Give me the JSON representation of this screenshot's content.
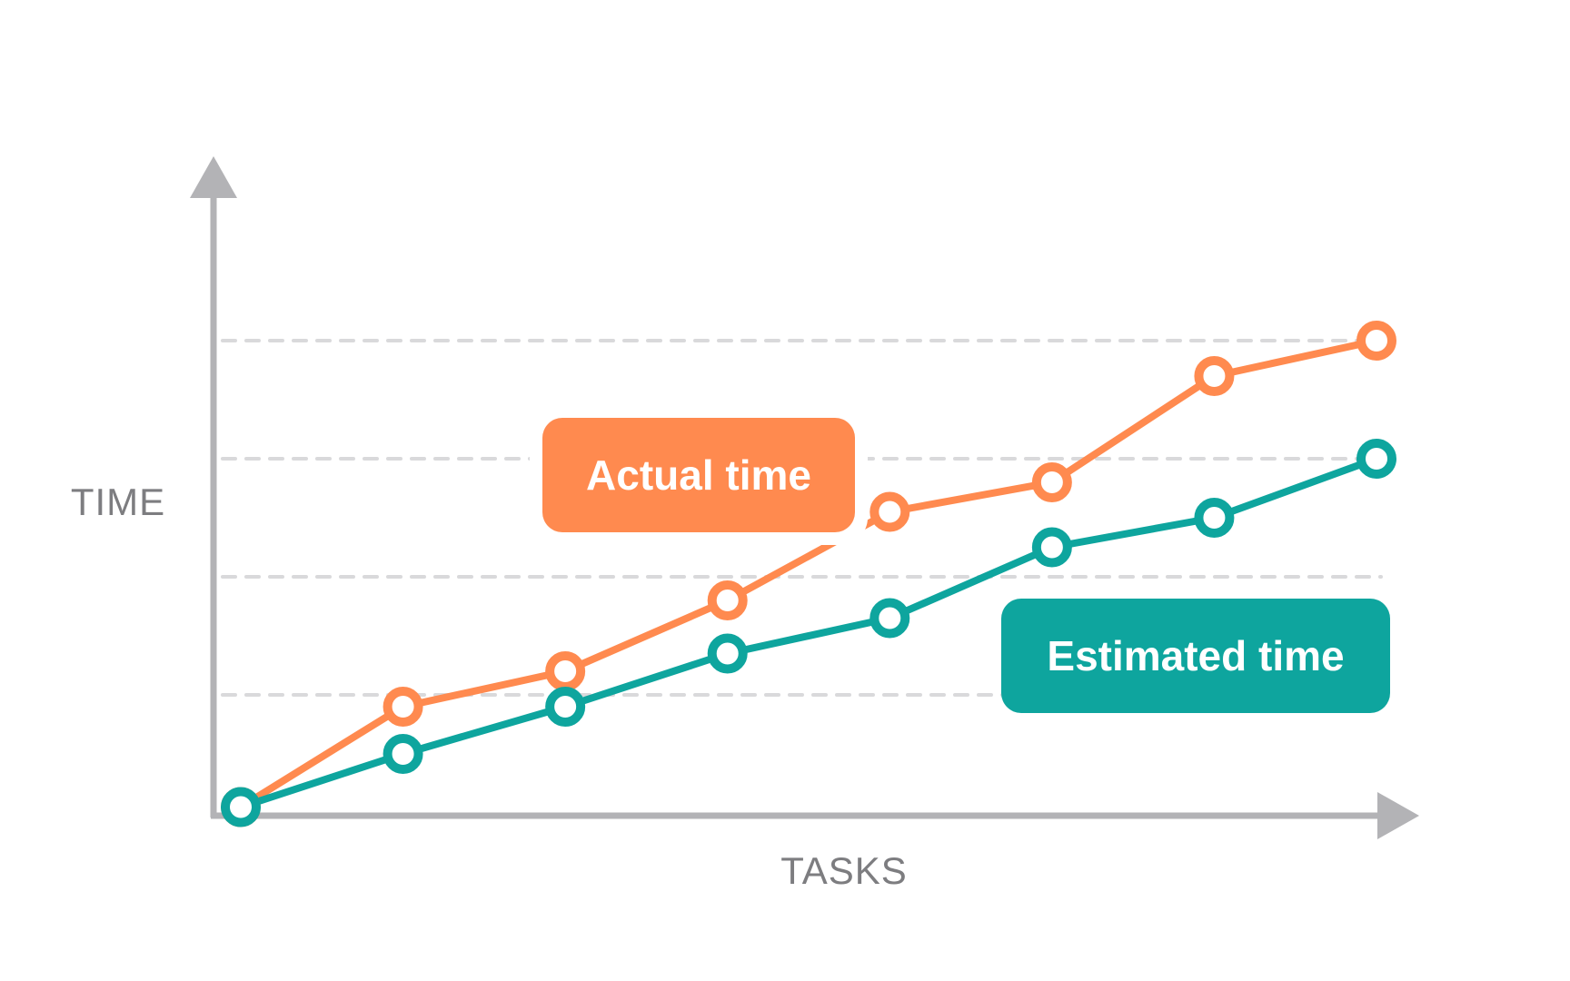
{
  "chart_data": {
    "type": "line",
    "xlabel": "TASKS",
    "ylabel": "TIME",
    "x": [
      1,
      2,
      3,
      4,
      5,
      6,
      7,
      8
    ],
    "ylim": [
      0,
      10
    ],
    "grid": true,
    "series": [
      {
        "name": "Actual time",
        "color": "#ff8a4f",
        "values": [
          0.1,
          1.8,
          2.4,
          3.6,
          5.1,
          5.6,
          7.4,
          8.0
        ]
      },
      {
        "name": "Estimated time",
        "color": "#0ea59e",
        "values": [
          0.1,
          1.0,
          1.8,
          2.7,
          3.3,
          4.5,
          5.0,
          6.0
        ]
      }
    ]
  },
  "colors": {
    "axis": "#b3b3b6",
    "grid": "#d9d9db",
    "text_muted": "#7d7d80"
  }
}
